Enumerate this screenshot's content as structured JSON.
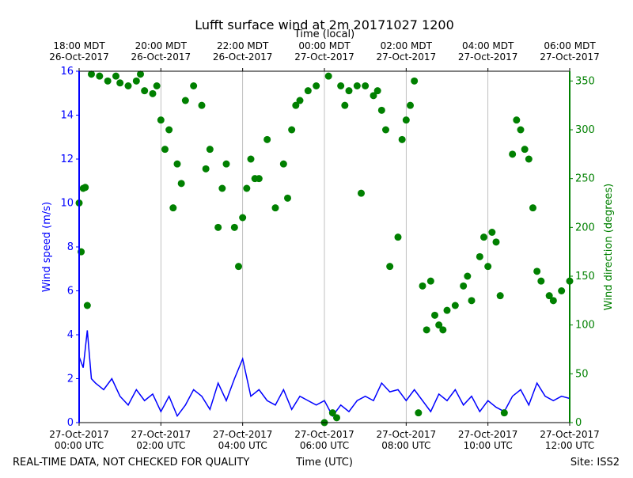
{
  "chart_data": {
    "type": "line",
    "title": "Lufft surface wind at 2m 20171027 1200",
    "x_label": "Time (UTC)",
    "x2_label": "Time (local)",
    "y_label": "Wind speed (m/s)",
    "y2_label": "Wind direction (degrees)",
    "footer_left": "REAL-TIME DATA, NOT CHECKED FOR QUALITY",
    "footer_right": "Site: ISS2",
    "xlim": [
      0,
      12
    ],
    "xticks": [
      {
        "value": 0,
        "label": "27-Oct-2017\n00:00 UTC"
      },
      {
        "value": 2,
        "label": "27-Oct-2017\n02:00 UTC"
      },
      {
        "value": 4,
        "label": "27-Oct-2017\n04:00 UTC"
      },
      {
        "value": 6,
        "label": "27-Oct-2017\n06:00 UTC"
      },
      {
        "value": 8,
        "label": "27-Oct-2017\n08:00 UTC"
      },
      {
        "value": 10,
        "label": "27-Oct-2017\n10:00 UTC"
      },
      {
        "value": 12,
        "label": "27-Oct-2017\n12:00 UTC"
      }
    ],
    "x2ticks": [
      {
        "value": 0,
        "label": "18:00 MDT\n26-Oct-2017"
      },
      {
        "value": 2,
        "label": "20:00 MDT\n26-Oct-2017"
      },
      {
        "value": 4,
        "label": "22:00 MDT\n26-Oct-2017"
      },
      {
        "value": 6,
        "label": "00:00 MDT\n27-Oct-2017"
      },
      {
        "value": 8,
        "label": "02:00 MDT\n27-Oct-2017"
      },
      {
        "value": 10,
        "label": "04:00 MDT\n27-Oct-2017"
      },
      {
        "value": 12,
        "label": "06:00 MDT\n27-Oct-2017"
      }
    ],
    "ylim": [
      0,
      16
    ],
    "yticks": [
      0,
      2,
      4,
      6,
      8,
      10,
      12,
      14,
      16
    ],
    "y2lim": [
      0,
      360
    ],
    "y2ticks": [
      0,
      50,
      100,
      150,
      200,
      250,
      300,
      350
    ],
    "grid": true,
    "series": [
      {
        "name": "Wind speed",
        "type": "line",
        "color": "#0000ff",
        "x": [
          0,
          0.1,
          0.2,
          0.3,
          0.4,
          0.6,
          0.8,
          1.0,
          1.2,
          1.4,
          1.6,
          1.8,
          2.0,
          2.2,
          2.4,
          2.6,
          2.8,
          3.0,
          3.2,
          3.4,
          3.6,
          3.8,
          4.0,
          4.2,
          4.4,
          4.6,
          4.8,
          5.0,
          5.2,
          5.4,
          5.6,
          5.8,
          6.0,
          6.2,
          6.4,
          6.6,
          6.8,
          7.0,
          7.2,
          7.4,
          7.6,
          7.8,
          8.0,
          8.2,
          8.4,
          8.6,
          8.8,
          9.0,
          9.2,
          9.4,
          9.6,
          9.8,
          10.0,
          10.2,
          10.4,
          10.6,
          10.8,
          11.0,
          11.2,
          11.4,
          11.6,
          11.8,
          12.0
        ],
        "values": [
          3.0,
          2.5,
          4.2,
          2.0,
          1.8,
          1.5,
          2.0,
          1.2,
          0.8,
          1.5,
          1.0,
          1.3,
          0.5,
          1.2,
          0.3,
          0.8,
          1.5,
          1.2,
          0.6,
          1.8,
          1.0,
          2.0,
          2.9,
          1.2,
          1.5,
          1.0,
          0.8,
          1.5,
          0.6,
          1.2,
          1.0,
          0.8,
          1.0,
          0.3,
          0.8,
          0.5,
          1.0,
          1.2,
          1.0,
          1.8,
          1.4,
          1.5,
          1.0,
          1.5,
          1.0,
          0.5,
          1.3,
          1.0,
          1.5,
          0.8,
          1.2,
          0.5,
          1.0,
          0.7,
          0.5,
          1.2,
          1.5,
          0.8,
          1.8,
          1.2,
          1.0,
          1.2,
          1.1
        ]
      },
      {
        "name": "Wind direction",
        "type": "scatter",
        "axis": "y2",
        "color": "#008000",
        "x": [
          0,
          0.05,
          0.1,
          0.15,
          0.2,
          0.3,
          0.5,
          0.7,
          0.9,
          1.0,
          1.2,
          1.4,
          1.5,
          1.6,
          1.8,
          1.9,
          2.0,
          2.1,
          2.2,
          2.3,
          2.4,
          2.5,
          2.6,
          2.8,
          3.0,
          3.1,
          3.2,
          3.4,
          3.5,
          3.6,
          3.8,
          3.9,
          4.0,
          4.1,
          4.2,
          4.3,
          4.4,
          4.6,
          4.8,
          5.0,
          5.1,
          5.2,
          5.3,
          5.4,
          5.6,
          5.8,
          6.0,
          6.1,
          6.2,
          6.3,
          6.4,
          6.5,
          6.6,
          6.8,
          6.9,
          7.0,
          7.2,
          7.3,
          7.4,
          7.5,
          7.6,
          7.8,
          7.9,
          8.0,
          8.1,
          8.2,
          8.3,
          8.4,
          8.5,
          8.6,
          8.7,
          8.8,
          8.9,
          9.0,
          9.2,
          9.4,
          9.5,
          9.6,
          9.8,
          9.9,
          10.0,
          10.1,
          10.2,
          10.3,
          10.4,
          10.6,
          10.7,
          10.8,
          10.9,
          11.0,
          11.1,
          11.2,
          11.3,
          11.5,
          11.6,
          11.8,
          12.0
        ],
        "values": [
          225,
          175,
          240,
          241,
          120,
          357,
          355,
          350,
          355,
          348,
          345,
          350,
          357,
          340,
          337,
          345,
          310,
          280,
          300,
          220,
          265,
          245,
          330,
          345,
          325,
          260,
          280,
          200,
          240,
          265,
          200,
          160,
          210,
          240,
          270,
          250,
          250,
          290,
          220,
          265,
          230,
          300,
          325,
          330,
          340,
          345,
          0,
          355,
          10,
          5,
          345,
          325,
          340,
          345,
          235,
          345,
          335,
          340,
          320,
          300,
          160,
          190,
          290,
          310,
          325,
          350,
          10,
          140,
          95,
          145,
          110,
          100,
          95,
          115,
          120,
          140,
          150,
          125,
          170,
          190,
          160,
          195,
          185,
          130,
          10,
          275,
          310,
          300,
          280,
          270,
          220,
          155,
          145,
          130,
          125,
          135,
          145
        ]
      }
    ]
  }
}
